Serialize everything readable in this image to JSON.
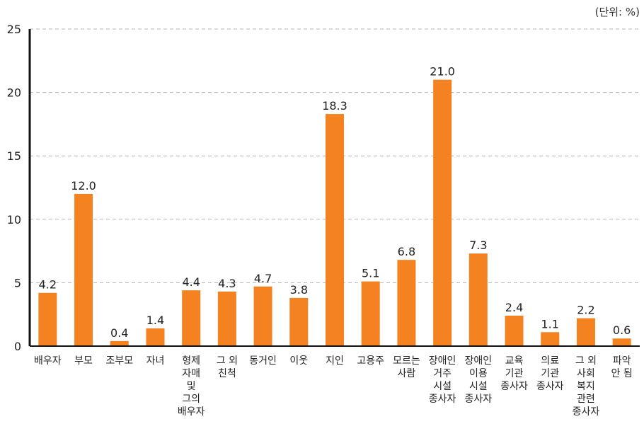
{
  "unit_label": "(단위: %)",
  "chart_data": {
    "type": "bar",
    "title": "",
    "xlabel": "",
    "ylabel": "",
    "ylim": [
      0,
      25
    ],
    "yticks": [
      0,
      5,
      10,
      15,
      20,
      25
    ],
    "grid": true,
    "bar_color": "#F58220",
    "categories": [
      "배우자",
      "부모",
      "조부모",
      "자녀",
      "형제\n자매\n및\n그의\n배우자",
      "그 외\n친척",
      "동거인",
      "이웃",
      "지인",
      "고용주",
      "모르는\n사람",
      "장애인\n거주\n시설\n종사자",
      "장애인\n이용\n시설\n종사자",
      "교육\n기관\n종사자",
      "의료\n기관\n종사자",
      "그 외\n사회\n복지\n관련\n종사자",
      "파악\n안 됨"
    ],
    "values": [
      4.2,
      12.0,
      0.4,
      1.4,
      4.4,
      4.3,
      4.7,
      3.8,
      18.3,
      5.1,
      6.8,
      21.0,
      7.3,
      2.4,
      1.1,
      2.2,
      0.6
    ],
    "value_labels": [
      "4.2",
      "12.0",
      "0.4",
      "1.4",
      "4.4",
      "4.3",
      "4.7",
      "3.8",
      "18.3",
      "5.1",
      "6.8",
      "21.0",
      "7.3",
      "2.4",
      "1.1",
      "2.2",
      "0.6"
    ]
  }
}
